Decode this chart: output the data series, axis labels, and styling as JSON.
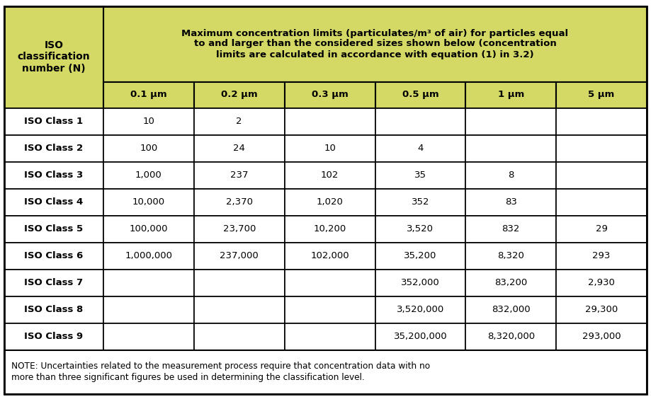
{
  "header_bg": "#d4d966",
  "header_text_color": "#000000",
  "cell_bg_white": "#ffffff",
  "border_color": "#000000",
  "text_color": "#000000",
  "main_header_line1": "Maximum concentration limits (particulates/m³ of air) for particles equal",
  "main_header_line2": "to and larger than the considered sizes shown below (concentration",
  "main_header_line3": "limits are calculated in accordance with equation (1) in 3.2)",
  "left_header": "ISO\nclassification\nnumber (N)",
  "col_headers": [
    "0.1 μm",
    "0.2 μm",
    "0.3 μm",
    "0.5 μm",
    "1 μm",
    "5 μm"
  ],
  "row_labels": [
    "ISO Class 1",
    "ISO Class 2",
    "ISO Class 3",
    "ISO Class 4",
    "ISO Class 5",
    "ISO Class 6",
    "ISO Class 7",
    "ISO Class 8",
    "ISO Class 9"
  ],
  "table_data": [
    [
      "10",
      "2",
      "",
      "",
      "",
      ""
    ],
    [
      "100",
      "24",
      "10",
      "4",
      "",
      ""
    ],
    [
      "1,000",
      "237",
      "102",
      "35",
      "8",
      ""
    ],
    [
      "10,000",
      "2,370",
      "1,020",
      "352",
      "83",
      ""
    ],
    [
      "100,000",
      "23,700",
      "10,200",
      "3,520",
      "832",
      "29"
    ],
    [
      "1,000,000",
      "237,000",
      "102,000",
      "35,200",
      "8,320",
      "293"
    ],
    [
      "",
      "",
      "",
      "352,000",
      "83,200",
      "2,930"
    ],
    [
      "",
      "",
      "",
      "3,520,000",
      "832,000",
      "29,300"
    ],
    [
      "",
      "",
      "",
      "35,200,000",
      "8,320,000",
      "293,000"
    ]
  ],
  "note_line1": "NOTE: Uncertainties related to the measurement process require that concentration data with no",
  "note_line2": "more than three significant figures be used in determining the classification level.",
  "figsize": [
    9.19,
    5.71
  ],
  "dpi": 100
}
